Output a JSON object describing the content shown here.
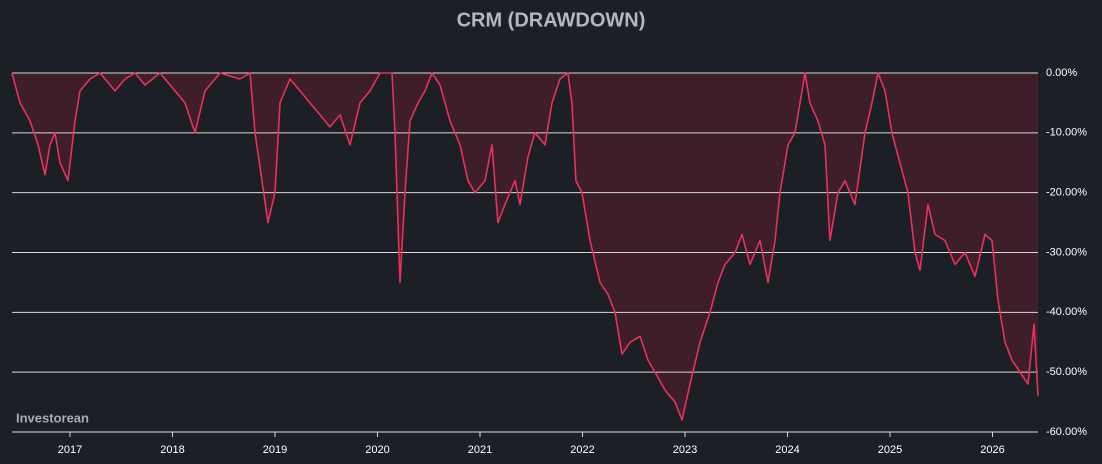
{
  "chart_data": {
    "type": "drawdown",
    "title": "CRM (DRAWDOWN)",
    "watermark": "Investorean",
    "series": [
      {
        "name": "CRM",
        "color": "#e8325a",
        "fill": "#3d1e2a",
        "x": [
          2016.434,
          2016.512,
          2016.61,
          2016.688,
          2016.756,
          2016.805,
          2016.854,
          2016.902,
          2016.98,
          2017.049,
          2017.097,
          2017.195,
          2017.293,
          2017.439,
          2017.536,
          2017.634,
          2017.732,
          2017.878,
          2018.024,
          2018.122,
          2018.219,
          2018.317,
          2018.463,
          2018.658,
          2018.756,
          2018.805,
          2018.873,
          2018.932,
          2019.0,
          2019.049,
          2019.146,
          2019.244,
          2019.341,
          2019.439,
          2019.536,
          2019.634,
          2019.732,
          2019.829,
          2019.927,
          2020.024,
          2020.141,
          2020.171,
          2020.219,
          2020.268,
          2020.317,
          2020.395,
          2020.463,
          2020.532,
          2020.61,
          2020.707,
          2020.805,
          2020.883,
          2020.951,
          2021.049,
          2021.117,
          2021.175,
          2021.244,
          2021.341,
          2021.39,
          2021.468,
          2021.536,
          2021.634,
          2021.702,
          2021.78,
          2021.858,
          2021.897,
          2021.936,
          2021.995,
          2022.073,
          2022.171,
          2022.249,
          2022.317,
          2022.385,
          2022.463,
          2022.561,
          2022.639,
          2022.707,
          2022.805,
          2022.902,
          2022.971,
          2023.049,
          2023.146,
          2023.244,
          2023.322,
          2023.39,
          2023.488,
          2023.556,
          2023.634,
          2023.732,
          2023.81,
          2023.878,
          2023.927,
          2024.005,
          2024.073,
          2024.122,
          2024.171,
          2024.219,
          2024.297,
          2024.366,
          2024.414,
          2024.493,
          2024.561,
          2024.658,
          2024.756,
          2024.824,
          2024.883,
          2024.951,
          2025.019,
          2025.097,
          2025.175,
          2025.244,
          2025.293,
          2025.371,
          2025.439,
          2025.536,
          2025.634,
          2025.732,
          2025.829,
          2025.927,
          2025.995,
          2026.054,
          2026.122,
          2026.19,
          2026.268,
          2026.346,
          2026.405,
          2026.444
        ],
        "values": [
          0,
          -5,
          -8,
          -12,
          -17,
          -12,
          -10,
          -15,
          -18,
          -8,
          -3,
          -1,
          0,
          -3,
          -1,
          0,
          -2,
          0,
          -3,
          -5,
          -10,
          -3,
          0,
          -1,
          0,
          -10,
          -18,
          -25,
          -20,
          -5,
          -1,
          -3,
          -5,
          -7,
          -9,
          -7,
          -12,
          -5,
          -3,
          0,
          0,
          -10,
          -35,
          -20,
          -8,
          -5,
          -3,
          0,
          -2,
          -8,
          -12,
          -18,
          -20,
          -18,
          -12,
          -25,
          -22,
          -18,
          -22,
          -14,
          -10,
          -12,
          -5,
          -1,
          0,
          -5,
          -18,
          -20,
          -28,
          -35,
          -37,
          -40,
          -47,
          -45,
          -44,
          -48,
          -50,
          -53,
          -55,
          -58,
          -52,
          -45,
          -40,
          -35,
          -32,
          -30,
          -27,
          -32,
          -28,
          -35,
          -28,
          -20,
          -12,
          -10,
          -5,
          0,
          -5,
          -8,
          -12,
          -28,
          -20,
          -18,
          -22,
          -10,
          -5,
          0,
          -3,
          -10,
          -15,
          -20,
          -30,
          -33,
          -22,
          -27,
          -28,
          -32,
          -30,
          -34,
          -27,
          -28,
          -38,
          -45,
          -48,
          -50,
          -52,
          -42,
          -54
        ]
      }
    ],
    "xlim": [
      2016.434,
      2026.444
    ],
    "xticks": [
      2017,
      2018,
      2019,
      2020,
      2021,
      2022,
      2023,
      2024,
      2025,
      2026
    ],
    "ylim": [
      -60,
      0
    ],
    "yticks": [
      {
        "value": 0,
        "label": "0.00%"
      },
      {
        "value": -10,
        "label": "-10.00%"
      },
      {
        "value": -20,
        "label": "-20.00%"
      },
      {
        "value": -30,
        "label": "-30.00%"
      },
      {
        "value": -40,
        "label": "-40.00%"
      },
      {
        "value": -50,
        "label": "-50.00%"
      },
      {
        "value": -60,
        "label": "-60.00%"
      }
    ],
    "grid": true
  }
}
